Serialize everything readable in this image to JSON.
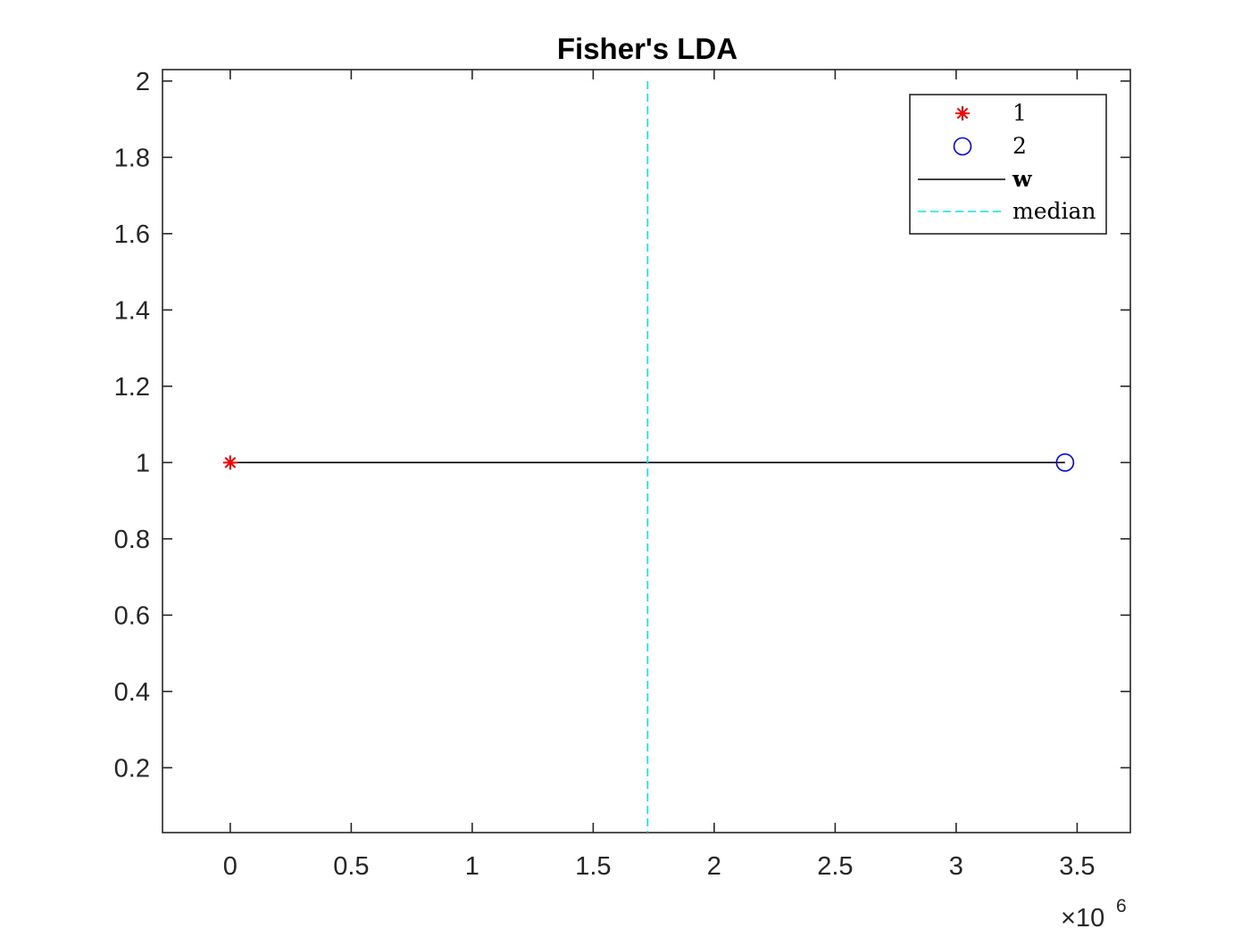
{
  "chart_data": {
    "type": "scatter",
    "title": "Fisher's LDA",
    "xlabel": "",
    "ylabel": "",
    "x_exponent_label": "×10",
    "x_exponent_power": "6",
    "xlim": [
      -0.28,
      3.72
    ],
    "ylim": [
      0.03,
      2.03
    ],
    "x_ticks": [
      0,
      0.5,
      1,
      1.5,
      2,
      2.5,
      3,
      3.5
    ],
    "x_tick_labels": [
      "0",
      "0.5",
      "1",
      "1.5",
      "2",
      "2.5",
      "3",
      "3.5"
    ],
    "y_ticks": [
      0.2,
      0.4,
      0.6,
      0.8,
      1,
      1.2,
      1.4,
      1.6,
      1.8,
      2
    ],
    "y_tick_labels": [
      "0.2",
      "0.4",
      "0.6",
      "0.8",
      "1",
      "1.2",
      "1.4",
      "1.6",
      "1.8",
      "2"
    ],
    "grid": false,
    "legend_position": "top-right",
    "series": [
      {
        "name": "1",
        "kind": "marker",
        "marker": "asterisk",
        "color": "#ff0000",
        "points": [
          {
            "x": 0.0,
            "y": 1
          }
        ]
      },
      {
        "name": "2",
        "kind": "marker",
        "marker": "circle",
        "color": "#0000ff",
        "points": [
          {
            "x": 3.45,
            "y": 1
          }
        ]
      },
      {
        "name": "w",
        "kind": "line",
        "style": "solid",
        "color": "#000000",
        "points": [
          {
            "x": 0.0,
            "y": 1
          },
          {
            "x": 3.45,
            "y": 1
          }
        ]
      },
      {
        "name": "median",
        "kind": "vline",
        "style": "dashed",
        "color": "#00e5e5",
        "x": 1.725
      }
    ]
  }
}
